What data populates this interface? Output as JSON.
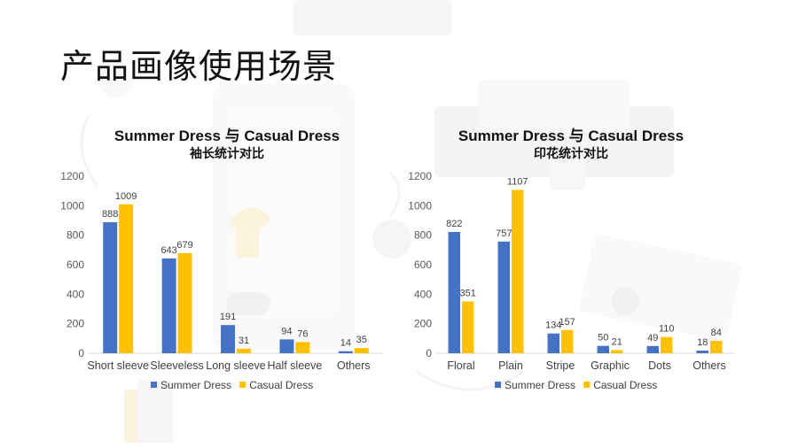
{
  "page_title": "产品画像使用场景",
  "colors": {
    "summer": "#4472C4",
    "casual": "#FFC000"
  },
  "chart_data": [
    {
      "type": "bar",
      "title": "Summer Dress 与 Casual Dress",
      "subtitle": "袖长统计对比",
      "categories": [
        "Short sleeve",
        "Sleeveless",
        "Long sleeve",
        "Half sleeve",
        "Others"
      ],
      "series": [
        {
          "name": "Summer Dress",
          "values": [
            888,
            643,
            191,
            94,
            14
          ]
        },
        {
          "name": "Casual Dress",
          "values": [
            1009,
            679,
            31,
            76,
            35
          ]
        }
      ],
      "ylim": [
        0,
        1200
      ],
      "yticks": [
        0,
        200,
        400,
        600,
        800,
        1000,
        1200
      ],
      "legend": "bottom",
      "grid": false
    },
    {
      "type": "bar",
      "title": "Summer Dress 与 Casual Dress",
      "subtitle": "印花统计对比",
      "categories": [
        "Floral",
        "Plain",
        "Stripe",
        "Graphic",
        "Dots",
        "Others"
      ],
      "series": [
        {
          "name": "Summer Dress",
          "values": [
            822,
            757,
            134,
            50,
            49,
            18
          ]
        },
        {
          "name": "Casual Dress",
          "values": [
            351,
            1107,
            157,
            21,
            110,
            84
          ]
        }
      ],
      "ylim": [
        0,
        1200
      ],
      "yticks": [
        0,
        200,
        400,
        600,
        800,
        1000,
        1200
      ],
      "legend": "bottom",
      "grid": false
    }
  ]
}
